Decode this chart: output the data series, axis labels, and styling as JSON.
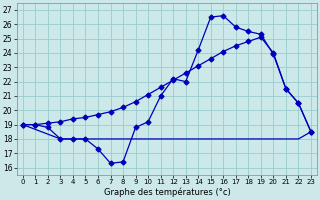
{
  "xlabel": "Graphe des températures (°c)",
  "bg_color": "#cce8e8",
  "line_color": "#0000bb",
  "grid_color": "#99cccc",
  "xlim": [
    -0.5,
    23.5
  ],
  "ylim": [
    15.5,
    27.5
  ],
  "xticks": [
    0,
    1,
    2,
    3,
    4,
    5,
    6,
    7,
    8,
    9,
    10,
    11,
    12,
    13,
    14,
    15,
    16,
    17,
    18,
    19,
    20,
    21,
    22,
    23
  ],
  "yticks": [
    16,
    17,
    18,
    19,
    20,
    21,
    22,
    23,
    24,
    25,
    26,
    27
  ],
  "line1_x": [
    0,
    1,
    2,
    3,
    4,
    5,
    6,
    7,
    8,
    9,
    10,
    11,
    12,
    13,
    14,
    15,
    16,
    17,
    18,
    19,
    20,
    21,
    22,
    23
  ],
  "line1_y": [
    19.0,
    19.0,
    18.8,
    18.0,
    18.0,
    18.0,
    17.3,
    16.3,
    16.4,
    18.8,
    19.2,
    21.0,
    22.2,
    22.0,
    24.2,
    26.5,
    26.6,
    25.8,
    25.5,
    25.3,
    23.9,
    21.5,
    20.5,
    18.5
  ],
  "line2_x": [
    0,
    1,
    2,
    3,
    4,
    5,
    6,
    7,
    8,
    9,
    10,
    11,
    12,
    13,
    14,
    15,
    16,
    17,
    18,
    19,
    20,
    21,
    22,
    23
  ],
  "line2_y": [
    19.0,
    19.0,
    19.1,
    19.2,
    19.4,
    19.5,
    19.7,
    19.9,
    20.2,
    20.6,
    21.1,
    21.6,
    22.1,
    22.6,
    23.1,
    23.6,
    24.1,
    24.5,
    24.8,
    25.1,
    24.0,
    21.5,
    20.5,
    18.5
  ],
  "line3_x": [
    0,
    3,
    10,
    15,
    22,
    23
  ],
  "line3_y": [
    19.0,
    18.0,
    18.0,
    18.0,
    18.0,
    18.5
  ],
  "xtick_fontsize": 5.0,
  "ytick_fontsize": 5.5,
  "xlabel_fontsize": 6.0
}
